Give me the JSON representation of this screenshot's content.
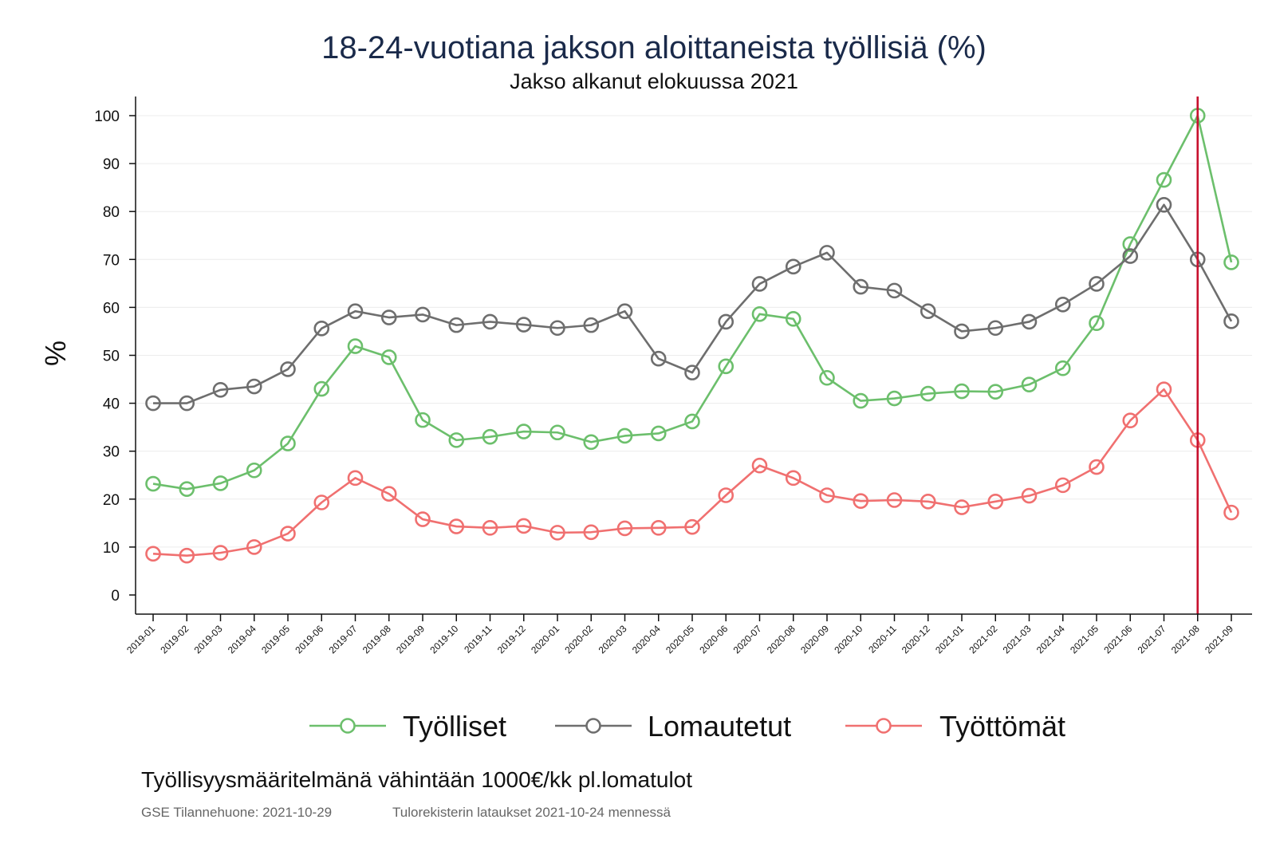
{
  "chart_data": {
    "type": "line",
    "title": "18-24-vuotiana jakson aloittaneista työllisiä (%)",
    "subtitle": "Jakso alkanut elokuussa 2021",
    "ylabel": "%",
    "xlabel": "",
    "ylim": [
      0,
      100
    ],
    "yticks": [
      0,
      10,
      20,
      30,
      40,
      50,
      60,
      70,
      80,
      90,
      100
    ],
    "grid": true,
    "legend_position": "bottom",
    "categories": [
      "2019-01",
      "2019-02",
      "2019-03",
      "2019-04",
      "2019-05",
      "2019-06",
      "2019-07",
      "2019-08",
      "2019-09",
      "2019-10",
      "2019-11",
      "2019-12",
      "2020-01",
      "2020-02",
      "2020-03",
      "2020-04",
      "2020-05",
      "2020-06",
      "2020-07",
      "2020-08",
      "2020-09",
      "2020-10",
      "2020-11",
      "2020-12",
      "2021-01",
      "2021-02",
      "2021-03",
      "2021-04",
      "2021-05",
      "2021-06",
      "2021-07",
      "2021-08",
      "2021-09"
    ],
    "reference_line": {
      "x": "2021-08",
      "color": "#c8102e"
    },
    "series": [
      {
        "name": "Työlliset",
        "color": "#6cbf6c",
        "values": [
          23.2,
          22.1,
          23.3,
          26.0,
          31.6,
          43.0,
          51.9,
          49.6,
          36.5,
          32.3,
          33.0,
          34.1,
          33.9,
          31.9,
          33.2,
          33.7,
          36.2,
          47.7,
          58.6,
          57.6,
          45.3,
          40.5,
          41.0,
          42.0,
          42.5,
          42.4,
          43.9,
          47.3,
          56.7,
          73.2,
          86.6,
          100.0,
          69.4
        ]
      },
      {
        "name": "Lomautetut",
        "color": "#6e6e6e",
        "values": [
          40.0,
          40.0,
          42.8,
          43.5,
          47.1,
          55.6,
          59.2,
          57.9,
          58.5,
          56.3,
          57.0,
          56.4,
          55.7,
          56.3,
          59.2,
          49.3,
          46.4,
          57.0,
          64.9,
          68.5,
          71.4,
          64.3,
          63.5,
          59.2,
          55.0,
          55.7,
          57.0,
          60.6,
          64.9,
          70.7,
          81.4,
          70.0,
          57.1
        ]
      },
      {
        "name": "Työttömät",
        "color": "#f07070",
        "values": [
          8.6,
          8.2,
          8.8,
          10.0,
          12.8,
          19.3,
          24.4,
          21.1,
          15.8,
          14.3,
          14.0,
          14.4,
          13.0,
          13.1,
          13.9,
          14.0,
          14.2,
          20.8,
          27.0,
          24.4,
          20.8,
          19.6,
          19.8,
          19.5,
          18.3,
          19.5,
          20.7,
          22.9,
          26.7,
          36.4,
          42.9,
          32.3,
          17.2
        ]
      }
    ],
    "note": "Työllisyysmääritelmänä vähintään 1000€/kk pl.lomatulot",
    "source_left": "GSE Tilannehuone: 2021-10-29",
    "source_right": "Tulorekisterin lataukset 2021-10-24 mennessä"
  }
}
